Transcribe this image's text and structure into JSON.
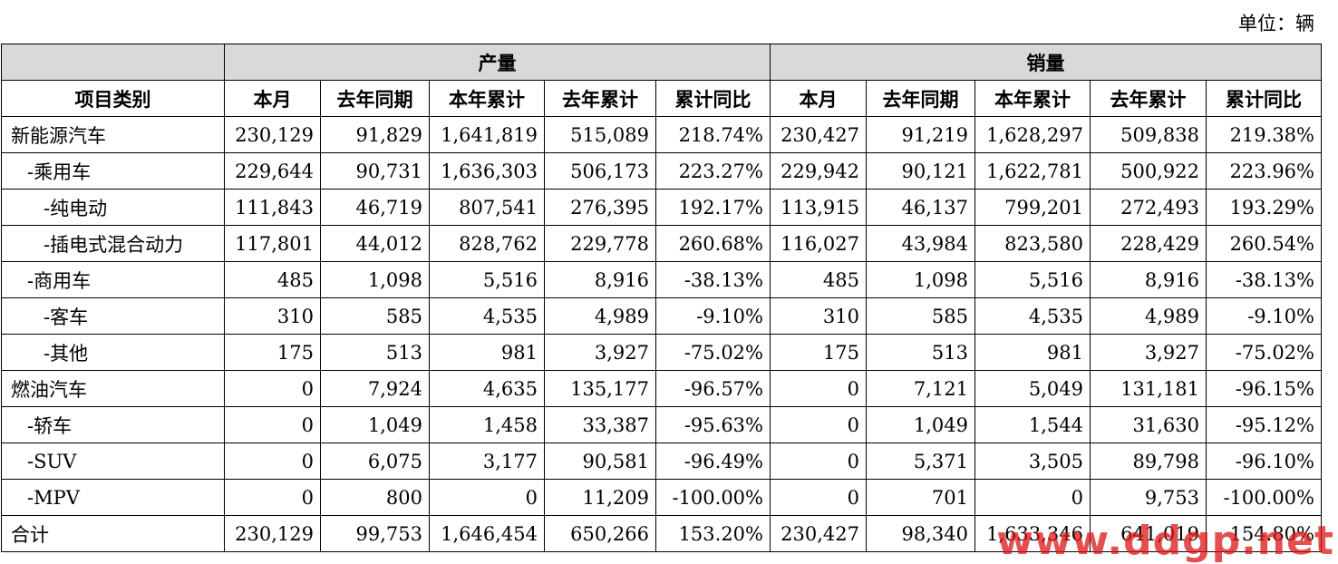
{
  "unit_label": "单位：辆",
  "group_headers": {
    "production": "产量",
    "sales": "销量"
  },
  "col_headers": [
    "项目类别",
    "本月",
    "去年同期",
    "本年累计",
    "去年累计",
    "累计同比",
    "本月",
    "去年同期",
    "本年累计",
    "去年累计",
    "累计同比"
  ],
  "rows": [
    {
      "name": "新能源汽车",
      "indent": 0,
      "prod": [
        "230,129",
        "91,829",
        "1,641,819",
        "515,089",
        "218.74%"
      ],
      "sales": [
        "230,427",
        "91,219",
        "1,628,297",
        "509,838",
        "219.38%"
      ]
    },
    {
      "name": "-乘用车",
      "indent": 1,
      "prod": [
        "229,644",
        "90,731",
        "1,636,303",
        "506,173",
        "223.27%"
      ],
      "sales": [
        "229,942",
        "90,121",
        "1,622,781",
        "500,922",
        "223.96%"
      ]
    },
    {
      "name": "-纯电动",
      "indent": 2,
      "prod": [
        "111,843",
        "46,719",
        "807,541",
        "276,395",
        "192.17%"
      ],
      "sales": [
        "113,915",
        "46,137",
        "799,201",
        "272,493",
        "193.29%"
      ]
    },
    {
      "name": "-插电式混合动力",
      "indent": 2,
      "prod": [
        "117,801",
        "44,012",
        "828,762",
        "229,778",
        "260.68%"
      ],
      "sales": [
        "116,027",
        "43,984",
        "823,580",
        "228,429",
        "260.54%"
      ]
    },
    {
      "name": "-商用车",
      "indent": 1,
      "prod": [
        "485",
        "1,098",
        "5,516",
        "8,916",
        "-38.13%"
      ],
      "sales": [
        "485",
        "1,098",
        "5,516",
        "8,916",
        "-38.13%"
      ]
    },
    {
      "name": "-客车",
      "indent": 2,
      "prod": [
        "310",
        "585",
        "4,535",
        "4,989",
        "-9.10%"
      ],
      "sales": [
        "310",
        "585",
        "4,535",
        "4,989",
        "-9.10%"
      ]
    },
    {
      "name": "-其他",
      "indent": 2,
      "prod": [
        "175",
        "513",
        "981",
        "3,927",
        "-75.02%"
      ],
      "sales": [
        "175",
        "513",
        "981",
        "3,927",
        "-75.02%"
      ]
    },
    {
      "name": "燃油汽车",
      "indent": 0,
      "prod": [
        "0",
        "7,924",
        "4,635",
        "135,177",
        "-96.57%"
      ],
      "sales": [
        "0",
        "7,121",
        "5,049",
        "131,181",
        "-96.15%"
      ]
    },
    {
      "name": "-轿车",
      "indent": 1,
      "prod": [
        "0",
        "1,049",
        "1,458",
        "33,387",
        "-95.63%"
      ],
      "sales": [
        "0",
        "1,049",
        "1,544",
        "31,630",
        "-95.12%"
      ]
    },
    {
      "name": "-SUV",
      "indent": 1,
      "prod": [
        "0",
        "6,075",
        "3,177",
        "90,581",
        "-96.49%"
      ],
      "sales": [
        "0",
        "5,371",
        "3,505",
        "89,798",
        "-96.10%"
      ]
    },
    {
      "name": "-MPV",
      "indent": 1,
      "prod": [
        "0",
        "800",
        "0",
        "11,209",
        "-100.00%"
      ],
      "sales": [
        "0",
        "701",
        "0",
        "9,753",
        "-100.00%"
      ]
    },
    {
      "name": "合计",
      "indent": 0,
      "prod": [
        "230,129",
        "99,753",
        "1,646,454",
        "650,266",
        "153.20%"
      ],
      "sales": [
        "230,427",
        "98,340",
        "1,633,346",
        "641,019",
        "154.80%"
      ]
    }
  ],
  "watermark": "www.ddgp.net"
}
